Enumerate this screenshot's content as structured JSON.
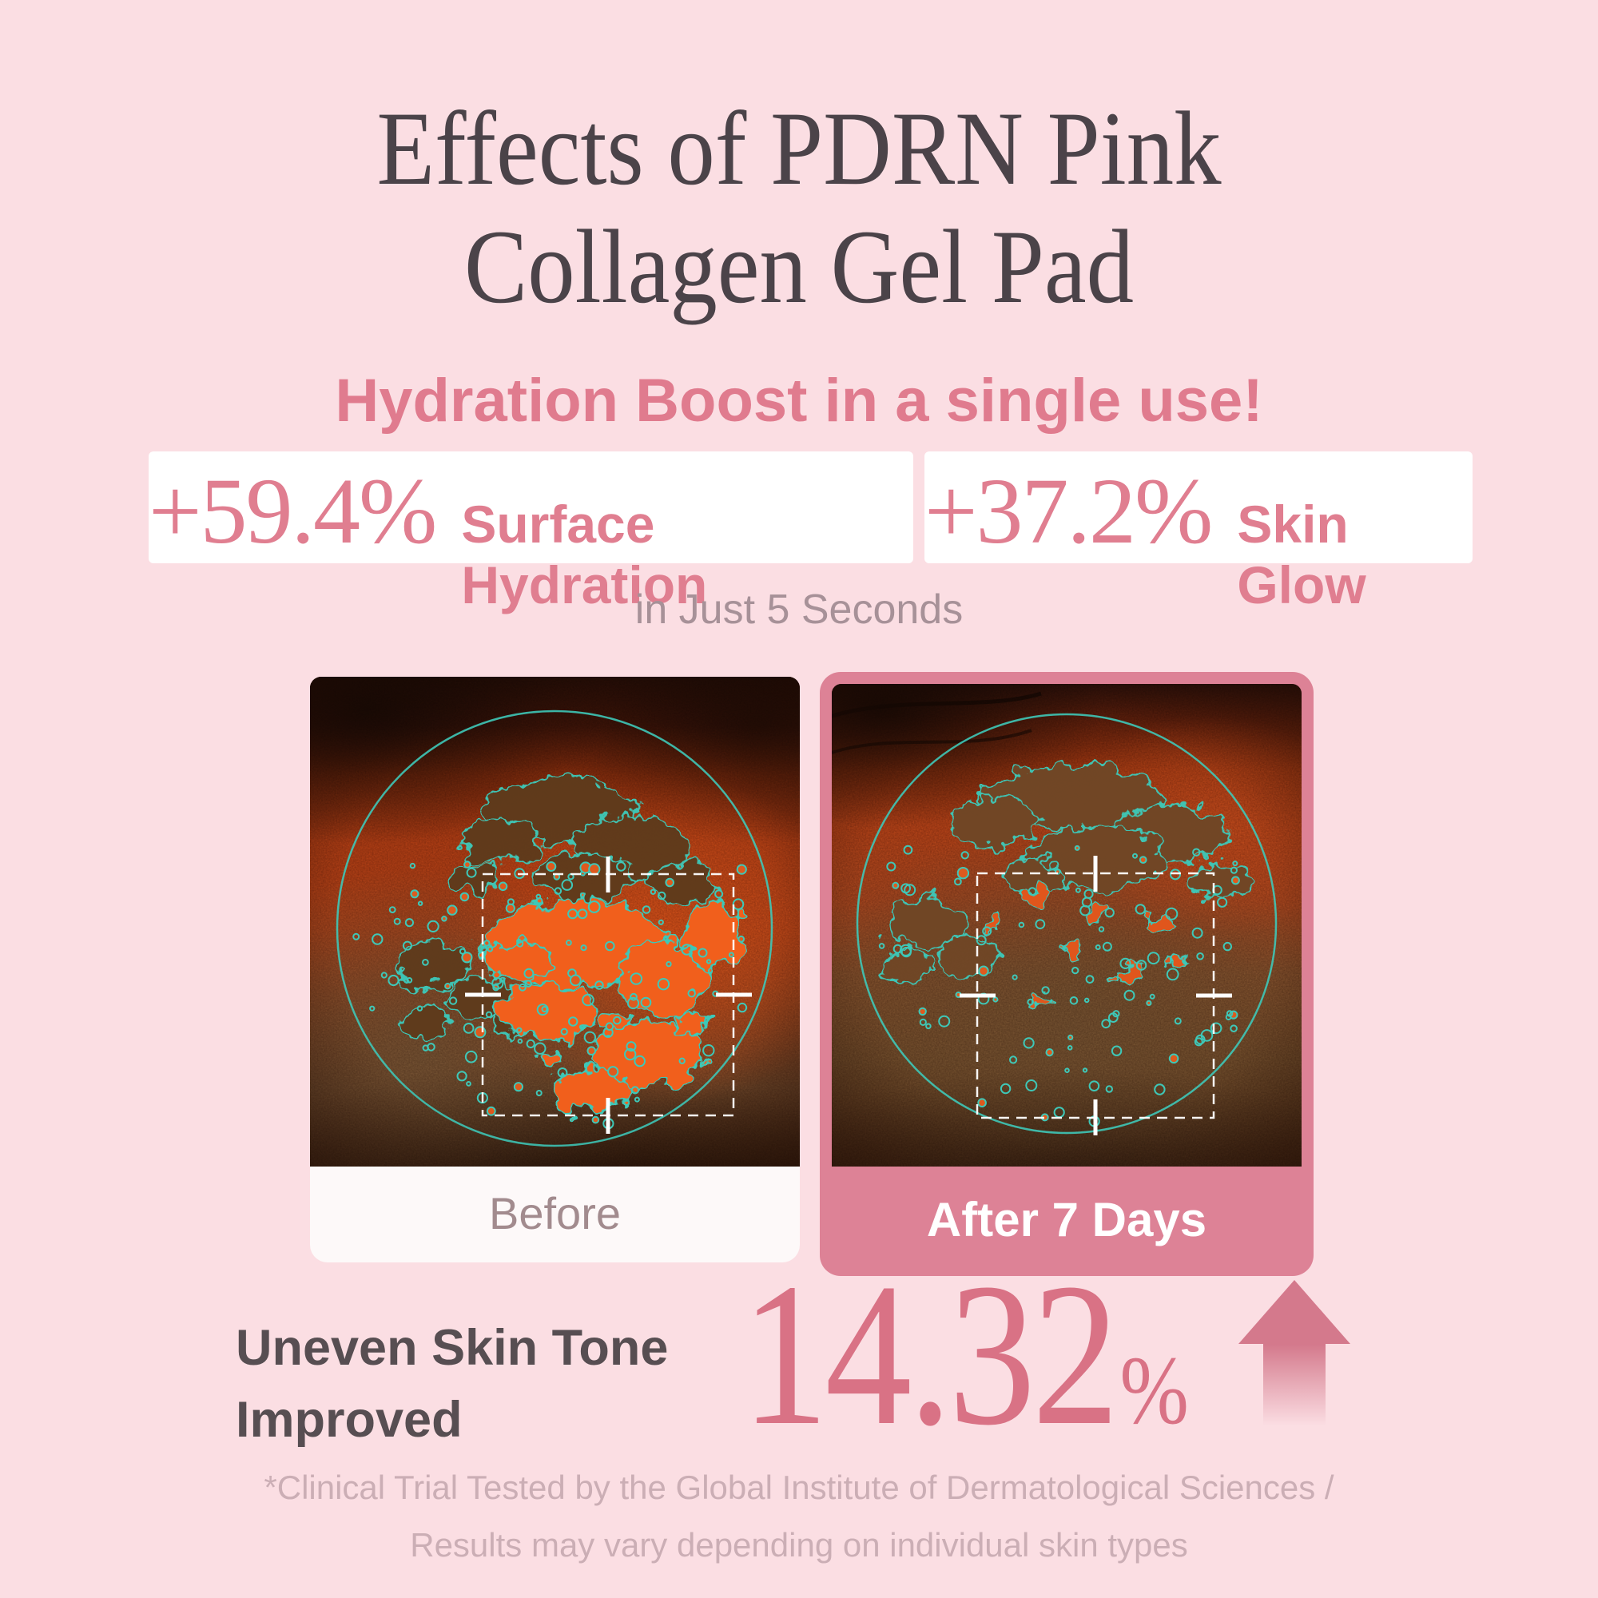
{
  "colors": {
    "background": "#FBDEE3",
    "title_text": "#4B4349",
    "accent_pink": "#E07B8E",
    "stat_pink": "#E07E90",
    "muted_mauve": "#A79198",
    "before_label_bg": "#FDF9F9",
    "before_label_text": "#A28B8E",
    "after_card_pink": "#DD8296",
    "after_label_text": "#FFFFFF",
    "result_heading_text": "#574E52",
    "result_value_pink": "#D97285",
    "footnote_text": "#CBAEB5",
    "overlay_teal": "#3EC8B8"
  },
  "title": {
    "line1": "Effects of PDRN Pink",
    "line2": "Collagen Gel Pad"
  },
  "subtitle": "Hydration Boost in a single use!",
  "stats": [
    {
      "value": "+59.4%",
      "label": "Surface Hydration"
    },
    {
      "value": "+37.2%",
      "label": "Skin Glow"
    }
  ],
  "tagline": "in Just 5 Seconds",
  "comparison": {
    "before": {
      "label": "Before"
    },
    "after": {
      "label": "After 7 Days"
    }
  },
  "result": {
    "heading_line1": "Uneven Skin Tone",
    "heading_line2": "Improved",
    "value": "14.32",
    "unit": "%",
    "arrow_icon": "up-arrow-icon"
  },
  "footnote": {
    "line1": "*Clinical Trial Tested by the Global Institute of Dermatological Sciences /",
    "line2": "Results may vary depending on individual skin types"
  }
}
